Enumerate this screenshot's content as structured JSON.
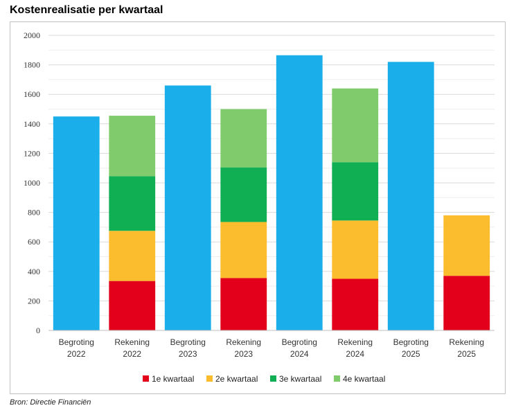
{
  "title": "Kostenrealisatie per kwartaal",
  "source": "Bron: Directie Financiën",
  "chart_data": {
    "type": "bar",
    "stacked": true,
    "categories": [
      [
        "Begroting",
        "2022"
      ],
      [
        "Rekening",
        "2022"
      ],
      [
        "Begroting",
        "2023"
      ],
      [
        "Rekening",
        "2023"
      ],
      [
        "Begroting",
        "2024"
      ],
      [
        "Rekening",
        "2024"
      ],
      [
        "Begroting",
        "2025"
      ],
      [
        "Rekening",
        "2025"
      ]
    ],
    "series": [
      {
        "name": "",
        "color": "#1aaeea",
        "values": [
          1450,
          0,
          1660,
          0,
          1865,
          0,
          1820,
          0
        ]
      },
      {
        "name": "1e kwartaal",
        "color": "#e3001b",
        "values": [
          0,
          335,
          0,
          355,
          0,
          350,
          0,
          370
        ]
      },
      {
        "name": "2e kwartaal",
        "color": "#fbbc2d",
        "values": [
          0,
          340,
          0,
          380,
          0,
          395,
          0,
          410
        ]
      },
      {
        "name": "3e kwartaal",
        "color": "#10af54",
        "values": [
          0,
          370,
          0,
          370,
          0,
          395,
          0,
          0
        ]
      },
      {
        "name": "4e kwartaal",
        "color": "#80cb6b",
        "values": [
          0,
          410,
          0,
          395,
          0,
          500,
          0,
          0
        ]
      }
    ],
    "ylim": [
      0,
      2000
    ],
    "yticks": [
      0,
      200,
      400,
      600,
      800,
      1000,
      1200,
      1400,
      1600,
      1800,
      2000
    ],
    "grid": true,
    "legend_position": "bottom"
  }
}
